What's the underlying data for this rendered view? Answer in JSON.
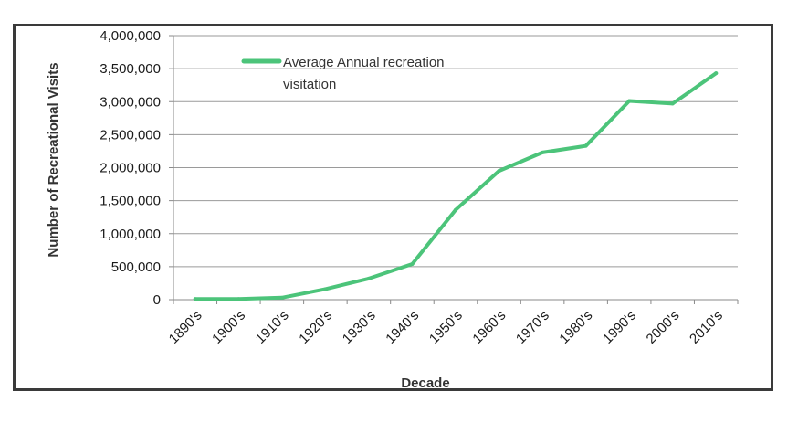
{
  "chart_data": {
    "type": "line",
    "title": "",
    "xlabel": "Decade",
    "ylabel": "Number of Recreational Visits",
    "categories": [
      "1890's",
      "1900's",
      "1910's",
      "1920's",
      "1930's",
      "1940's",
      "1950's",
      "1960's",
      "1970's",
      "1980's",
      "1990's",
      "2000's",
      "2010's"
    ],
    "series": [
      {
        "name": "Average Annual recreation visitation",
        "legend_lines": [
          "Average Annual recreation",
          "visitation"
        ],
        "color": "#4cc47a",
        "values": [
          10000,
          10000,
          30000,
          160000,
          320000,
          540000,
          1360000,
          1950000,
          2230000,
          2330000,
          3010000,
          2970000,
          3430000
        ]
      }
    ],
    "ylim": [
      0,
      4000000
    ],
    "y_ticks": [
      "0",
      "500,000",
      "1,000,000",
      "1,500,000",
      "2,000,000",
      "2,500,000",
      "3,000,000",
      "3,500,000",
      "4,000,000"
    ],
    "y_tick_values": [
      0,
      500000,
      1000000,
      1500000,
      2000000,
      2500000,
      3000000,
      3500000,
      4000000
    ],
    "grid": true,
    "legend_position": "top-left"
  }
}
